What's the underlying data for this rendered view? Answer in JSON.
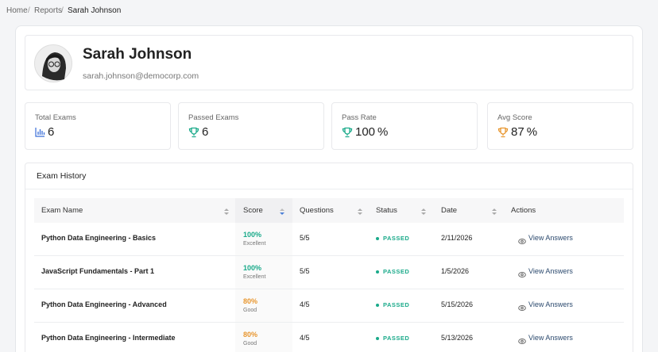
{
  "breadcrumb": [
    "Home",
    "Reports",
    "Sarah Johnson"
  ],
  "profile": {
    "name": "Sarah Johnson",
    "email": "sarah.johnson@democorp.com"
  },
  "stats": [
    {
      "label": "Total Exams",
      "value": 6,
      "unit": null,
      "icon": "chart"
    },
    {
      "label": "Passed Exams",
      "value": 6,
      "unit": null,
      "icon": "trophy-green"
    },
    {
      "label": "Pass Rate",
      "value": 100,
      "unit": "%",
      "icon": "trophy-green"
    },
    {
      "label": "Avg Score",
      "value": 87,
      "unit": "%",
      "icon": "trophy-orange"
    }
  ],
  "history": {
    "title": "Exam History",
    "columns": [
      "Exam Name",
      "Score",
      "Questions",
      "Status",
      "Date",
      "Actions"
    ],
    "rows": [
      {
        "name": "Python Data Engineering - Basics",
        "score": "100%",
        "grade": "Excellent",
        "questions": "5/5",
        "status": "PASSED",
        "date": "2/11/2026",
        "action": "View Answers"
      },
      {
        "name": "JavaScript Fundamentals - Part 1",
        "score": "100%",
        "grade": "Excellent",
        "questions": "5/5",
        "status": "PASSED",
        "date": "1/5/2026",
        "action": "View Answers"
      },
      {
        "name": "Python Data Engineering - Advanced",
        "score": "80%",
        "grade": "Good",
        "questions": "4/5",
        "status": "PASSED",
        "date": "5/15/2026",
        "action": "View Answers"
      },
      {
        "name": "Python Data Engineering - Intermediate",
        "score": "80%",
        "grade": "Good",
        "questions": "4/5",
        "status": "PASSED",
        "date": "5/13/2026",
        "action": "View Answers"
      }
    ]
  }
}
